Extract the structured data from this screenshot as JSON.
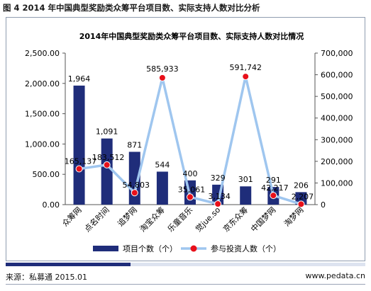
{
  "figure": {
    "heading": "图 4 2014 年中国典型奖励类众筹平台项目数、实际支持人数对比分析",
    "source": "来源：私募通 2015.01",
    "url": "www.pedata.cn"
  },
  "chart_data": {
    "type": "bar+line",
    "title": "2014年中国典型奖励类众筹平台项目数、实际支持人数对比情况",
    "categories": [
      "众筹网",
      "点名时间",
      "追梦网",
      "淘宝众筹",
      "乐童音乐",
      "觉jue.so",
      "京东众筹",
      "中国梦网",
      "淘梦网"
    ],
    "series": [
      {
        "name": "项目个数（个）",
        "type": "bar",
        "axis": "left",
        "values": [
          1964,
          1091,
          871,
          544,
          400,
          329,
          301,
          291,
          206
        ],
        "labels": [
          "1,964",
          "1,091",
          "871",
          "544",
          "400",
          "329",
          "301",
          "291",
          "206"
        ]
      },
      {
        "name": "参与投资人数（个）",
        "type": "line",
        "axis": "right",
        "values": [
          165137,
          183512,
          54803,
          585933,
          35061,
          3134,
          591742,
          42217,
          2207
        ],
        "labels": [
          "165,137",
          "183,512",
          "54,803",
          "585,933",
          "35,061",
          "3,134",
          "591,742",
          "42,217",
          "2,207"
        ]
      }
    ],
    "y_left": {
      "min": 0,
      "max": 2500,
      "step": 500,
      "ticks": [
        "0.00",
        "500.00",
        "1,000.00",
        "1,500.00",
        "2,000.00",
        "2,500.00"
      ]
    },
    "y_right": {
      "min": 0,
      "max": 700000,
      "step": 100000,
      "ticks": [
        "0",
        "100,000",
        "200,000",
        "300,000",
        "400,000",
        "500,000",
        "600,000",
        "700,000"
      ]
    },
    "grid": false,
    "legend_position": "bottom",
    "colors": {
      "bar": "#1f2d7a",
      "line": "#9fc6ef",
      "marker": "#e8101a"
    }
  }
}
